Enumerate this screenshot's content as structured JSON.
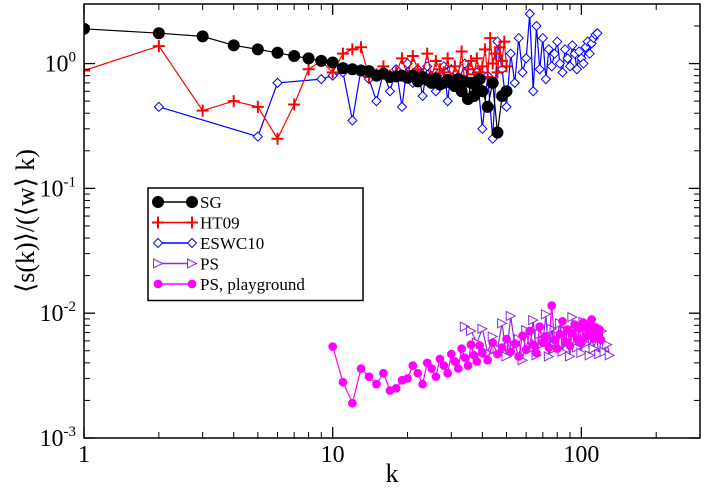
{
  "chart_data": {
    "type": "scatter",
    "title": "",
    "xlabel": "k",
    "ylabel": "⟨s(k)⟩/(⟨w⟩ k)",
    "xscale": "log",
    "yscale": "log",
    "xlim": [
      1,
      300
    ],
    "ylim": [
      0.001,
      3
    ],
    "x_ticks": [
      {
        "value": 1,
        "label": "1"
      },
      {
        "value": 10,
        "label": "10"
      },
      {
        "value": 100,
        "label": "100"
      }
    ],
    "y_ticks": [
      {
        "value": 0.001,
        "base": "10",
        "exp": "-3"
      },
      {
        "value": 0.01,
        "base": "10",
        "exp": "-2"
      },
      {
        "value": 0.1,
        "base": "10",
        "exp": "-1"
      },
      {
        "value": 1,
        "base": "10",
        "exp": "0"
      }
    ],
    "legend": {
      "position": "center-left"
    },
    "series": [
      {
        "name": "SG",
        "color": "#000000",
        "marker": "circle-filled",
        "x": [
          1,
          2,
          3,
          4,
          5,
          6,
          7,
          8,
          9,
          10,
          11,
          12,
          13,
          14,
          15,
          16,
          17,
          18,
          19,
          20,
          21,
          22,
          23,
          24,
          25,
          26,
          27,
          28,
          29,
          30,
          31,
          32,
          33,
          34,
          35,
          36,
          37,
          38,
          39,
          40,
          42,
          44,
          46,
          48,
          50
        ],
        "y": [
          1.9,
          1.75,
          1.65,
          1.4,
          1.3,
          1.22,
          1.15,
          1.1,
          1.05,
          1.02,
          0.92,
          0.9,
          0.88,
          0.87,
          0.8,
          0.83,
          0.78,
          0.79,
          0.8,
          0.77,
          0.8,
          0.72,
          0.78,
          0.74,
          0.7,
          0.76,
          0.68,
          0.7,
          0.74,
          0.7,
          0.66,
          0.75,
          0.6,
          0.72,
          0.52,
          0.7,
          0.55,
          0.65,
          0.75,
          0.6,
          0.45,
          0.7,
          0.28,
          0.55,
          0.6
        ]
      },
      {
        "name": "HT09",
        "color": "#ff0000",
        "marker": "plus",
        "x": [
          1,
          2,
          3,
          4,
          5,
          6,
          7,
          8,
          9,
          10,
          11,
          12,
          13,
          14,
          15,
          16,
          17,
          18,
          19,
          20,
          21,
          22,
          23,
          24,
          25,
          26,
          27,
          28,
          29,
          30,
          31,
          32,
          33,
          34,
          35,
          36,
          37,
          38,
          39,
          40,
          41,
          42,
          43,
          44,
          45,
          46,
          47,
          48,
          49,
          50
        ],
        "y": [
          0.88,
          1.38,
          0.42,
          0.5,
          0.45,
          0.25,
          0.47,
          0.9,
          1.05,
          0.85,
          1.2,
          1.3,
          1.35,
          0.78,
          0.82,
          0.95,
          0.8,
          0.85,
          1.1,
          0.8,
          1.15,
          0.9,
          0.82,
          1.2,
          0.78,
          1.05,
          0.9,
          0.85,
          1.1,
          0.75,
          0.95,
          0.8,
          1.25,
          0.7,
          0.9,
          1.05,
          0.82,
          1.1,
          0.85,
          0.95,
          1.3,
          0.78,
          1.6,
          1.0,
          1.2,
          0.85,
          1.35,
          1.05,
          1.5,
          0.95
        ]
      },
      {
        "name": "ESWC10",
        "color": "#0000ff",
        "marker": "diamond-open",
        "x": [
          2,
          5,
          6,
          9,
          10,
          11,
          12,
          13,
          14,
          15,
          16,
          17,
          18,
          19,
          20,
          21,
          22,
          23,
          24,
          25,
          26,
          27,
          28,
          29,
          30,
          32,
          34,
          36,
          38,
          40,
          42,
          44,
          46,
          48,
          50,
          52,
          54,
          56,
          58,
          60,
          62,
          64,
          66,
          68,
          70,
          72,
          74,
          76,
          78,
          80,
          82,
          84,
          86,
          88,
          90,
          92,
          94,
          96,
          98,
          100,
          102,
          104,
          106,
          108,
          110,
          112,
          114,
          116
        ],
        "y": [
          0.45,
          0.26,
          0.7,
          0.75,
          0.8,
          0.85,
          0.35,
          0.9,
          0.75,
          0.5,
          0.85,
          0.6,
          0.9,
          0.45,
          1.0,
          0.7,
          0.9,
          0.55,
          0.95,
          0.75,
          0.6,
          0.85,
          0.95,
          0.5,
          0.9,
          0.7,
          1.0,
          0.55,
          0.85,
          0.3,
          0.8,
          0.25,
          1.5,
          0.9,
          0.45,
          1.2,
          0.7,
          1.6,
          0.85,
          1.1,
          2.5,
          0.6,
          2.0,
          0.9,
          1.6,
          0.75,
          1.3,
          0.95,
          1.2,
          1.5,
          1.0,
          0.85,
          1.3,
          1.1,
          0.95,
          1.4,
          1.2,
          0.9,
          1.25,
          1.1,
          1.0,
          1.35,
          1.5,
          1.2,
          1.45,
          1.6,
          1.7,
          1.75
        ]
      },
      {
        "name": "PS",
        "color": "#8a2be2",
        "marker": "triangle-right-open",
        "x": [
          34,
          36,
          38,
          40,
          42,
          44,
          46,
          48,
          50,
          52,
          54,
          56,
          58,
          60,
          62,
          64,
          66,
          68,
          70,
          72,
          74,
          76,
          78,
          80,
          82,
          84,
          86,
          88,
          90,
          92,
          94,
          96,
          98,
          100,
          102,
          104,
          106,
          108,
          110,
          112,
          115,
          118,
          121,
          124,
          127,
          130
        ],
        "y": [
          0.0078,
          0.0072,
          0.0058,
          0.0075,
          0.0048,
          0.0065,
          0.0052,
          0.0083,
          0.0045,
          0.0095,
          0.0055,
          0.0062,
          0.0042,
          0.0073,
          0.0051,
          0.0088,
          0.0046,
          0.0068,
          0.0057,
          0.0098,
          0.0045,
          0.0075,
          0.0052,
          0.0066,
          0.0083,
          0.0049,
          0.0072,
          0.0058,
          0.0045,
          0.0093,
          0.0062,
          0.0053,
          0.0078,
          0.0048,
          0.0085,
          0.0057,
          0.0068,
          0.0046,
          0.0075,
          0.0052,
          0.0063,
          0.0047,
          0.0072,
          0.0049,
          0.0056,
          0.0046
        ]
      },
      {
        "name": "PS, playground",
        "color": "#ff00ff",
        "marker": "circle-filled",
        "x": [
          10,
          11,
          12,
          13,
          14,
          15,
          16,
          17,
          18,
          19,
          20,
          21,
          22,
          23,
          24,
          25,
          26,
          27,
          28,
          29,
          30,
          31,
          32,
          33,
          34,
          35,
          36,
          37,
          38,
          39,
          40,
          42,
          44,
          46,
          48,
          50,
          52,
          54,
          56,
          58,
          60,
          62,
          64,
          66,
          68,
          70,
          72,
          74,
          76,
          78,
          80,
          82,
          84,
          86,
          88,
          90,
          92,
          94,
          96,
          98,
          100,
          102,
          104,
          106,
          108,
          110,
          112,
          114,
          116,
          118,
          120
        ],
        "y": [
          0.0054,
          0.0028,
          0.0019,
          0.0036,
          0.0031,
          0.0027,
          0.0033,
          0.0024,
          0.0025,
          0.0029,
          0.003,
          0.0038,
          0.0033,
          0.0027,
          0.004,
          0.0036,
          0.0031,
          0.0043,
          0.0038,
          0.0033,
          0.0047,
          0.0041,
          0.0036,
          0.0052,
          0.0044,
          0.0038,
          0.0056,
          0.0046,
          0.0041,
          0.0055,
          0.0048,
          0.0042,
          0.0058,
          0.0047,
          0.0053,
          0.0062,
          0.0049,
          0.0057,
          0.0045,
          0.0066,
          0.0051,
          0.0072,
          0.0056,
          0.0048,
          0.0078,
          0.0058,
          0.0065,
          0.0053,
          0.0115,
          0.0061,
          0.0052,
          0.0068,
          0.0086,
          0.0059,
          0.0074,
          0.0055,
          0.0069,
          0.0081,
          0.0062,
          0.0076,
          0.0058,
          0.0084,
          0.0065,
          0.0078,
          0.0072,
          0.0089,
          0.0063,
          0.0077,
          0.0068,
          0.0074,
          0.0061
        ]
      }
    ]
  }
}
